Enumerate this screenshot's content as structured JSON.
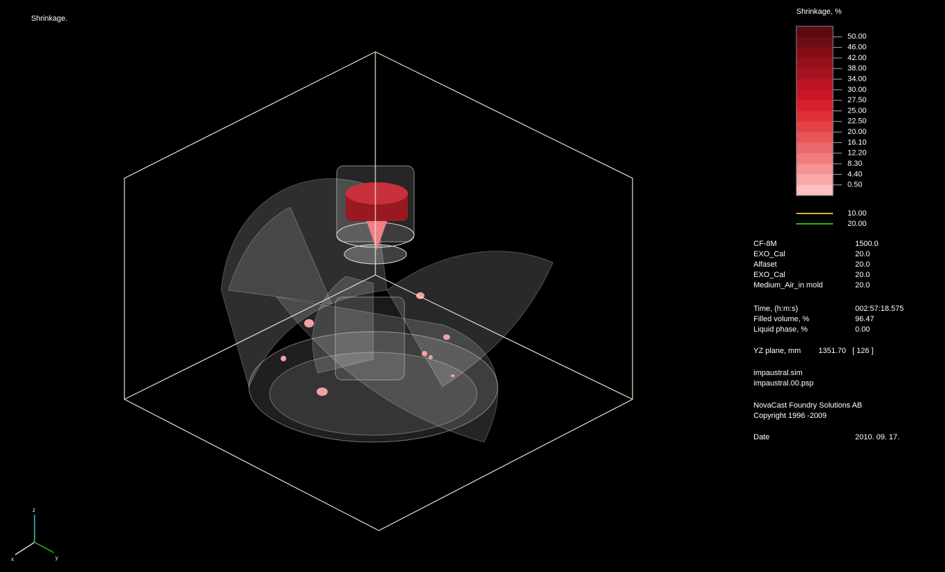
{
  "view_title": "Shrinkage.",
  "legend": {
    "title": "Shrinkage, %",
    "labels": [
      "50.00",
      "46.00",
      "42.00",
      "38.00",
      "34.00",
      "30.00",
      "27.50",
      "25.00",
      "22.50",
      "20.00",
      "16.10",
      "12.20",
      "8.30",
      "4.40",
      "0.50"
    ],
    "band_colors": [
      "#5a0a10",
      "#6e0c14",
      "#820e18",
      "#96101c",
      "#a81220",
      "#bb1424",
      "#cc1628",
      "#d9202e",
      "#df3038",
      "#e44248",
      "#e85558",
      "#ec686a",
      "#f07c7e",
      "#f49294",
      "#f7a8aa",
      "#fac0c2"
    ],
    "lines": [
      {
        "color": "#c8c020",
        "label": "10.00"
      },
      {
        "color": "#20c020",
        "label": "20.00"
      }
    ]
  },
  "materials": [
    [
      "CF-8M",
      "1500.0"
    ],
    [
      "EXO_Cal",
      "20.0"
    ],
    [
      "Alfaset",
      "20.0"
    ],
    [
      "EXO_Cal",
      "20.0"
    ],
    [
      "Medium_Air_in mold",
      "20.0"
    ]
  ],
  "status": [
    [
      "Time, (h:m:s)",
      "002:57:18.575"
    ],
    [
      "Filled volume, %",
      "96.47"
    ],
    [
      "Liquid phase, %",
      "0.00"
    ]
  ],
  "plane": {
    "label": "YZ plane, mm",
    "value": "1351.70",
    "index": "[ 126 ]"
  },
  "files": [
    "impaustral.sim",
    "impaustral.00.psp"
  ],
  "company": [
    "NovaCast Foundry Solutions AB",
    "Copyright 1996 -2009"
  ],
  "date": {
    "label": "Date",
    "value": "2010. 09. 17."
  },
  "axes": {
    "z": "z",
    "x": "x",
    "y": "y"
  }
}
